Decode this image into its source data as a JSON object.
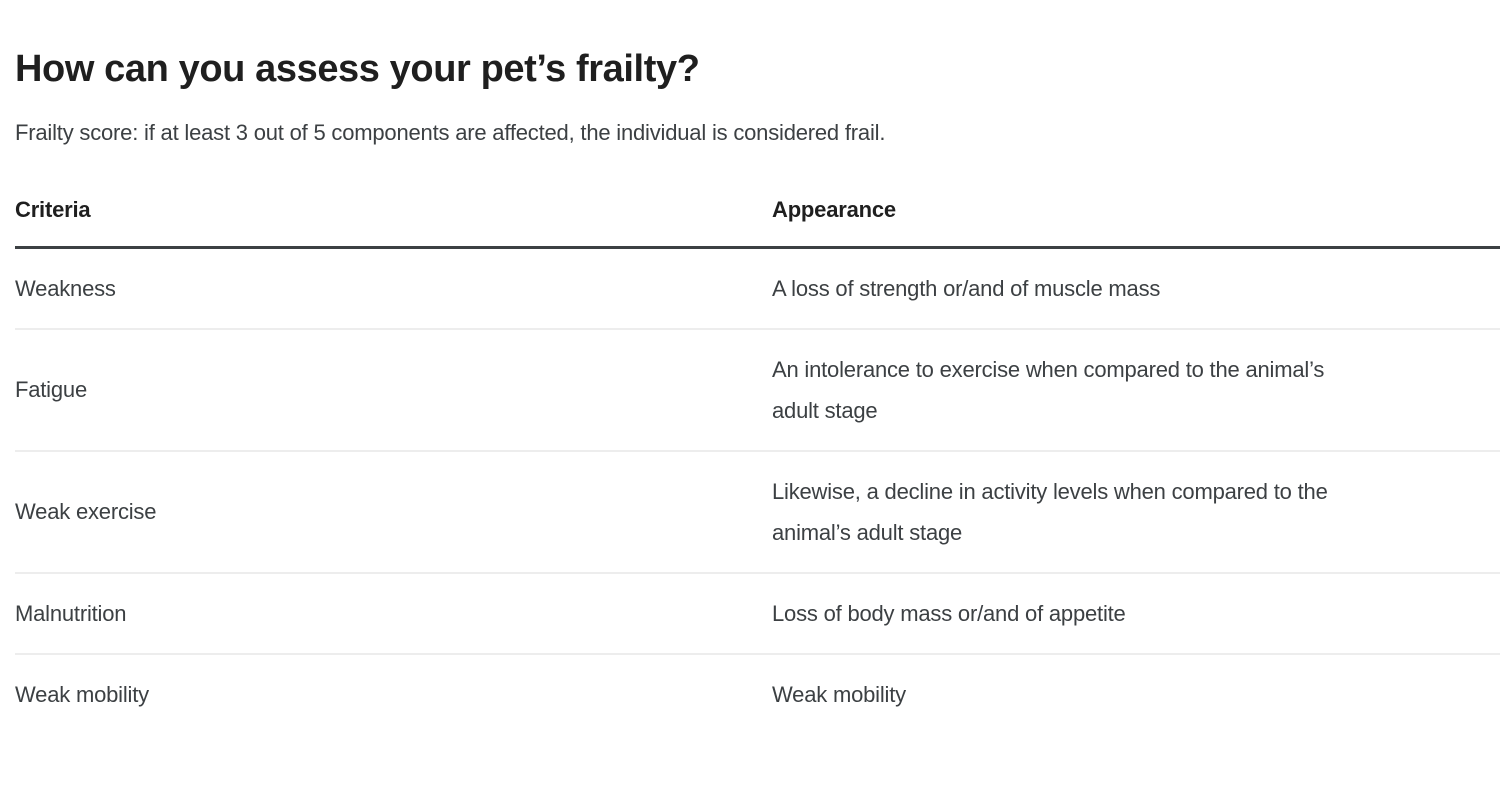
{
  "page": {
    "title": "How can you assess your pet’s frailty?",
    "subtitle": "Frailty score: if at least 3 out of 5 components are affected, the individual is considered frail."
  },
  "table": {
    "columns": [
      "Criteria",
      "Appearance"
    ],
    "rows": [
      {
        "criteria": "Weakness",
        "appearance": "A loss of strength or/and of muscle mass"
      },
      {
        "criteria": "Fatigue",
        "appearance": "An intolerance to exercise when compared to the animal’s\nadult stage"
      },
      {
        "criteria": "Weak exercise",
        "appearance": "Likewise, a decline in activity levels when compared to the\nanimal’s adult stage"
      },
      {
        "criteria": "Malnutrition",
        "appearance": "Loss of body mass or/and of appetite"
      },
      {
        "criteria": "Weak mobility",
        "appearance": "Weak mobility"
      }
    ]
  },
  "colors": {
    "heading_text": "#1f1f1f",
    "body_text": "#3c4043",
    "header_rule": "#3c4043",
    "row_separator": "#ededed",
    "background": "#ffffff"
  }
}
